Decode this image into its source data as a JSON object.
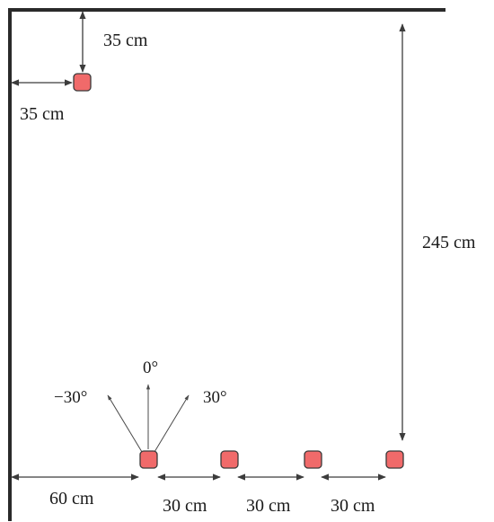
{
  "colors": {
    "sensor_fill": "#f06a6a",
    "sensor_stroke": "#3a3a3a",
    "wall": "#2a2a2a",
    "dimension_line": "#3c3c3c"
  },
  "labels": {
    "top_offset": "35 cm",
    "left_offset": "35 cm",
    "height": "245 cm",
    "first_offset": "60 cm",
    "spacing_1": "30 cm",
    "spacing_2": "30 cm",
    "spacing_3": "30 cm",
    "angle_left": "−30°",
    "angle_center": "0°",
    "angle_right": "30°"
  }
}
